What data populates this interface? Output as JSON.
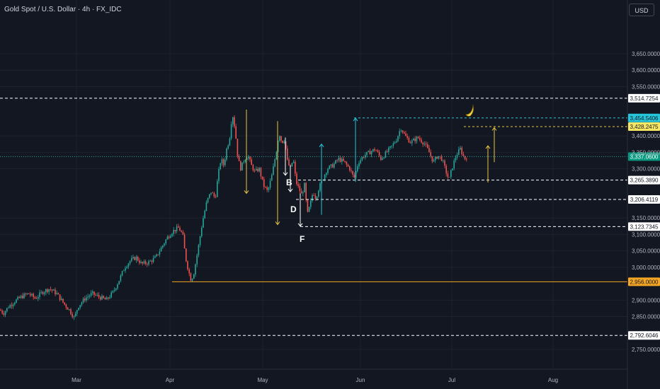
{
  "header": {
    "symbol_title": "Gold Spot / U.S. Dollar · 4h · FX_IDC",
    "currency": "USD"
  },
  "colors": {
    "background": "#131722",
    "grid": "#1e222d",
    "up": "#26a69a",
    "down": "#ef5350",
    "annotation": "#e8c547",
    "support": "#f5a623",
    "cyan": "#26c6da",
    "white": "#d1d4dc"
  },
  "price_axis": {
    "ticks": [
      "3,650.0000",
      "3,600.0000",
      "3,550.0000",
      "3,400.0000",
      "3,350.0000",
      "3,300.0000",
      "3,150.0000",
      "3,100.0000",
      "3,050.0000",
      "3,000.0000",
      "2,900.0000",
      "2,850.0000",
      "2,750.0000"
    ],
    "tick_values": [
      3650,
      3600,
      3550,
      3400,
      3350,
      3300,
      3150,
      3100,
      3050,
      3000,
      2900,
      2850,
      2750
    ]
  },
  "time_axis": {
    "labels": [
      "Mar",
      "Apr",
      "May",
      "Jun",
      "Jul",
      "Aug"
    ]
  },
  "levels": [
    {
      "label": "3,514.7254",
      "value": 3514.7254,
      "style": "white-dashed"
    },
    {
      "label": "3,454.5406",
      "value": 3454.5406,
      "style": "cyan-dashed"
    },
    {
      "label": "3,428.2475",
      "value": 3428.2475,
      "style": "yellow-dashed"
    },
    {
      "label": "3,337.0600",
      "value": 3337.06,
      "style": "current"
    },
    {
      "label": "3,265.3890",
      "value": 3265.389,
      "style": "white-dashed"
    },
    {
      "label": "3,206.4119",
      "value": 3206.4119,
      "style": "white-dashed"
    },
    {
      "label": "3,123.7345",
      "value": 3123.7345,
      "style": "white-dashed"
    },
    {
      "label": "2,956.0000",
      "value": 2956,
      "style": "support-solid"
    },
    {
      "label": "2,792.6046",
      "value": 2792.6046,
      "style": "white-dashed"
    }
  ],
  "annotations": {
    "point_b": "B",
    "point_d": "D",
    "point_f": "F"
  },
  "price_path": [
    [
      0,
      2870
    ],
    [
      5,
      2860
    ],
    [
      12,
      2880
    ],
    [
      20,
      2895
    ],
    [
      30,
      2910
    ],
    [
      40,
      2920
    ],
    [
      50,
      2905
    ],
    [
      60,
      2925
    ],
    [
      70,
      2935
    ],
    [
      80,
      2920
    ],
    [
      90,
      2890
    ],
    [
      98,
      2870
    ],
    [
      105,
      2845
    ],
    [
      110,
      2880
    ],
    [
      120,
      2905
    ],
    [
      130,
      2920
    ],
    [
      140,
      2910
    ],
    [
      150,
      2900
    ],
    [
      160,
      2925
    ],
    [
      168,
      2960
    ],
    [
      176,
      3000
    ],
    [
      184,
      3020
    ],
    [
      192,
      3030
    ],
    [
      200,
      3010
    ],
    [
      210,
      3015
    ],
    [
      220,
      3030
    ],
    [
      228,
      3060
    ],
    [
      236,
      3090
    ],
    [
      244,
      3110
    ],
    [
      252,
      3120
    ],
    [
      258,
      3100
    ],
    [
      262,
      3030
    ],
    [
      266,
      2990
    ],
    [
      270,
      2960
    ],
    [
      274,
      2985
    ],
    [
      280,
      3060
    ],
    [
      286,
      3140
    ],
    [
      292,
      3200
    ],
    [
      298,
      3230
    ],
    [
      304,
      3210
    ],
    [
      308,
      3280
    ],
    [
      312,
      3330
    ],
    [
      316,
      3310
    ],
    [
      320,
      3360
    ],
    [
      324,
      3390
    ],
    [
      328,
      3470
    ],
    [
      332,
      3420
    ],
    [
      336,
      3330
    ],
    [
      340,
      3300
    ],
    [
      345,
      3330
    ],
    [
      350,
      3340
    ],
    [
      355,
      3310
    ],
    [
      360,
      3290
    ],
    [
      366,
      3300
    ],
    [
      372,
      3250
    ],
    [
      378,
      3230
    ],
    [
      384,
      3280
    ],
    [
      390,
      3350
    ],
    [
      394,
      3410
    ],
    [
      398,
      3380
    ],
    [
      402,
      3390
    ],
    [
      406,
      3320
    ],
    [
      410,
      3300
    ],
    [
      414,
      3330
    ],
    [
      418,
      3260
    ],
    [
      422,
      3240
    ],
    [
      426,
      3220
    ],
    [
      430,
      3250
    ],
    [
      434,
      3160
    ],
    [
      438,
      3190
    ],
    [
      442,
      3230
    ],
    [
      446,
      3210
    ],
    [
      450,
      3240
    ],
    [
      456,
      3270
    ],
    [
      462,
      3300
    ],
    [
      470,
      3310
    ],
    [
      478,
      3330
    ],
    [
      486,
      3320
    ],
    [
      494,
      3300
    ],
    [
      500,
      3270
    ],
    [
      506,
      3320
    ],
    [
      514,
      3340
    ],
    [
      522,
      3350
    ],
    [
      530,
      3360
    ],
    [
      538,
      3330
    ],
    [
      546,
      3350
    ],
    [
      554,
      3370
    ],
    [
      560,
      3390
    ],
    [
      566,
      3425
    ],
    [
      572,
      3400
    ],
    [
      580,
      3380
    ],
    [
      590,
      3395
    ],
    [
      600,
      3375
    ],
    [
      606,
      3350
    ],
    [
      612,
      3320
    ],
    [
      618,
      3340
    ],
    [
      624,
      3330
    ],
    [
      630,
      3290
    ],
    [
      634,
      3265
    ],
    [
      638,
      3300
    ],
    [
      644,
      3340
    ],
    [
      650,
      3360
    ],
    [
      656,
      3330
    ],
    [
      660,
      3338
    ]
  ]
}
